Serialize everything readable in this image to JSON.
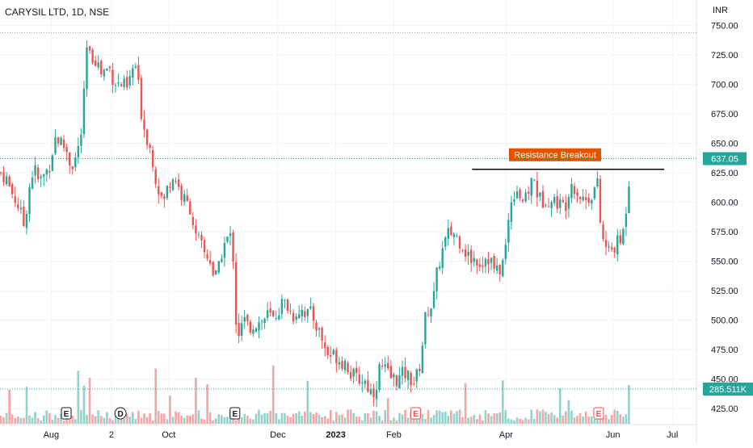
{
  "header": {
    "symbol_title": "CARYSIL LTD, 1D, NSE",
    "currency": "INR"
  },
  "colors": {
    "up": "#26a69a",
    "down": "#ef5350",
    "up_vol": "#8fd3cc",
    "down_vol": "#f5a5a3",
    "grid": "#f0f3fa",
    "axis_text": "#131722",
    "annotation_bg": "#e65100"
  },
  "chart_data": {
    "type": "candlestick",
    "title": "CARYSIL LTD, 1D, NSE",
    "ylabel": "INR",
    "ylim": [
      412,
      758
    ],
    "y_ticks": [
      "750.00",
      "725.00",
      "700.00",
      "675.00",
      "650.00",
      "625.00",
      "600.00",
      "575.00",
      "550.00",
      "525.00",
      "500.00",
      "475.00",
      "450.00",
      "425.00"
    ],
    "y_tick_values": [
      750,
      725,
      700,
      675,
      650,
      625,
      600,
      575,
      550,
      525,
      500,
      475,
      450,
      425
    ],
    "x_ticks": [
      "Aug",
      "2",
      "Oct",
      "Dec",
      "2023",
      "Feb",
      "Apr",
      "Jun",
      "Jul"
    ],
    "x_tick_positions": [
      0.068,
      0.148,
      0.224,
      0.369,
      0.446,
      0.523,
      0.672,
      0.814,
      0.893
    ],
    "price_high_line": 744,
    "last_price": {
      "value": 637.05,
      "label": "637.05"
    },
    "last_volume": {
      "value": 285.511,
      "label": "285.511K"
    },
    "annotation": {
      "text": "Resistance Breakout",
      "level": 628,
      "x_start": 0.627,
      "x_end": 0.882
    },
    "event_markers": [
      {
        "label": "E",
        "x": 0.088
      },
      {
        "label": "D",
        "x": 0.16
      },
      {
        "label": "E",
        "x": 0.312
      },
      {
        "label": "E",
        "x": 0.552
      },
      {
        "label": "E",
        "x": 0.795
      }
    ],
    "anchors": [
      [
        0,
        625
      ],
      [
        7,
        622
      ],
      [
        12,
        612
      ],
      [
        22,
        598
      ],
      [
        30,
        580
      ],
      [
        36,
        612
      ],
      [
        42,
        630
      ],
      [
        48,
        617
      ],
      [
        56,
        624
      ],
      [
        62,
        633
      ],
      [
        68,
        655
      ],
      [
        74,
        652
      ],
      [
        82,
        645
      ],
      [
        88,
        630
      ],
      [
        95,
        640
      ],
      [
        100,
        655
      ],
      [
        104,
        690
      ],
      [
        108,
        735
      ],
      [
        112,
        720
      ],
      [
        116,
        725
      ],
      [
        120,
        720
      ],
      [
        125,
        710
      ],
      [
        130,
        712
      ],
      [
        135,
        715
      ],
      [
        140,
        705
      ],
      [
        146,
        700
      ],
      [
        152,
        700
      ],
      [
        158,
        695
      ],
      [
        163,
        712
      ],
      [
        168,
        715
      ],
      [
        172,
        695
      ],
      [
        176,
        670
      ],
      [
        182,
        655
      ],
      [
        188,
        640
      ],
      [
        193,
        620
      ],
      [
        198,
        607
      ],
      [
        203,
        600
      ],
      [
        208,
        615
      ],
      [
        213,
        622
      ],
      [
        218,
        620
      ],
      [
        224,
        606
      ],
      [
        230,
        600
      ],
      [
        236,
        595
      ],
      [
        242,
        570
      ],
      [
        248,
        565
      ],
      [
        254,
        555
      ],
      [
        260,
        552
      ],
      [
        265,
        535
      ],
      [
        270,
        540
      ],
      [
        275,
        560
      ],
      [
        280,
        568
      ],
      [
        285,
        570
      ],
      [
        290,
        548
      ],
      [
        292,
        500
      ],
      [
        296,
        488
      ],
      [
        302,
        500
      ],
      [
        308,
        493
      ],
      [
        314,
        497
      ],
      [
        320,
        498
      ],
      [
        326,
        500
      ],
      [
        332,
        505
      ],
      [
        338,
        500
      ],
      [
        344,
        508
      ],
      [
        350,
        515
      ],
      [
        356,
        512
      ],
      [
        362,
        503
      ],
      [
        368,
        508
      ],
      [
        374,
        510
      ],
      [
        380,
        505
      ],
      [
        386,
        505
      ],
      [
        392,
        495
      ],
      [
        398,
        485
      ],
      [
        404,
        472
      ],
      [
        410,
        470
      ],
      [
        416,
        470
      ],
      [
        422,
        465
      ],
      [
        428,
        465
      ],
      [
        434,
        455
      ],
      [
        440,
        450
      ],
      [
        446,
        450
      ],
      [
        452,
        448
      ],
      [
        458,
        440
      ],
      [
        464,
        440
      ],
      [
        470,
        460
      ],
      [
        476,
        458
      ],
      [
        482,
        452
      ],
      [
        488,
        450
      ],
      [
        494,
        450
      ],
      [
        500,
        455
      ],
      [
        506,
        452
      ],
      [
        512,
        448
      ],
      [
        518,
        455
      ],
      [
        522,
        475
      ],
      [
        526,
        500
      ],
      [
        530,
        510
      ],
      [
        536,
        515
      ],
      [
        542,
        545
      ],
      [
        548,
        560
      ],
      [
        554,
        572
      ],
      [
        560,
        575
      ],
      [
        566,
        570
      ],
      [
        572,
        565
      ],
      [
        578,
        555
      ],
      [
        584,
        552
      ],
      [
        590,
        552
      ],
      [
        596,
        548
      ],
      [
        602,
        555
      ],
      [
        608,
        550
      ],
      [
        612,
        542
      ],
      [
        616,
        540
      ],
      [
        620,
        545
      ],
      [
        624,
        552
      ],
      [
        628,
        575
      ],
      [
        632,
        602
      ],
      [
        636,
        608
      ],
      [
        640,
        612
      ],
      [
        645,
        603
      ],
      [
        650,
        600
      ],
      [
        655,
        612
      ],
      [
        660,
        622
      ],
      [
        665,
        608
      ],
      [
        670,
        600
      ],
      [
        676,
        605
      ],
      [
        682,
        600
      ],
      [
        688,
        602
      ],
      [
        694,
        597
      ],
      [
        700,
        598
      ],
      [
        706,
        618
      ],
      [
        712,
        612
      ],
      [
        718,
        605
      ],
      [
        724,
        602
      ],
      [
        730,
        605
      ],
      [
        736,
        612
      ],
      [
        740,
        615
      ],
      [
        744,
        572
      ],
      [
        748,
        565
      ],
      [
        752,
        558
      ],
      [
        758,
        560
      ],
      [
        764,
        565
      ],
      [
        770,
        568
      ],
      [
        774,
        590
      ],
      [
        778,
        615
      ],
      [
        781,
        637
      ]
    ],
    "volume_note": "Volume histogram drawn along the bottom of the price pane"
  }
}
